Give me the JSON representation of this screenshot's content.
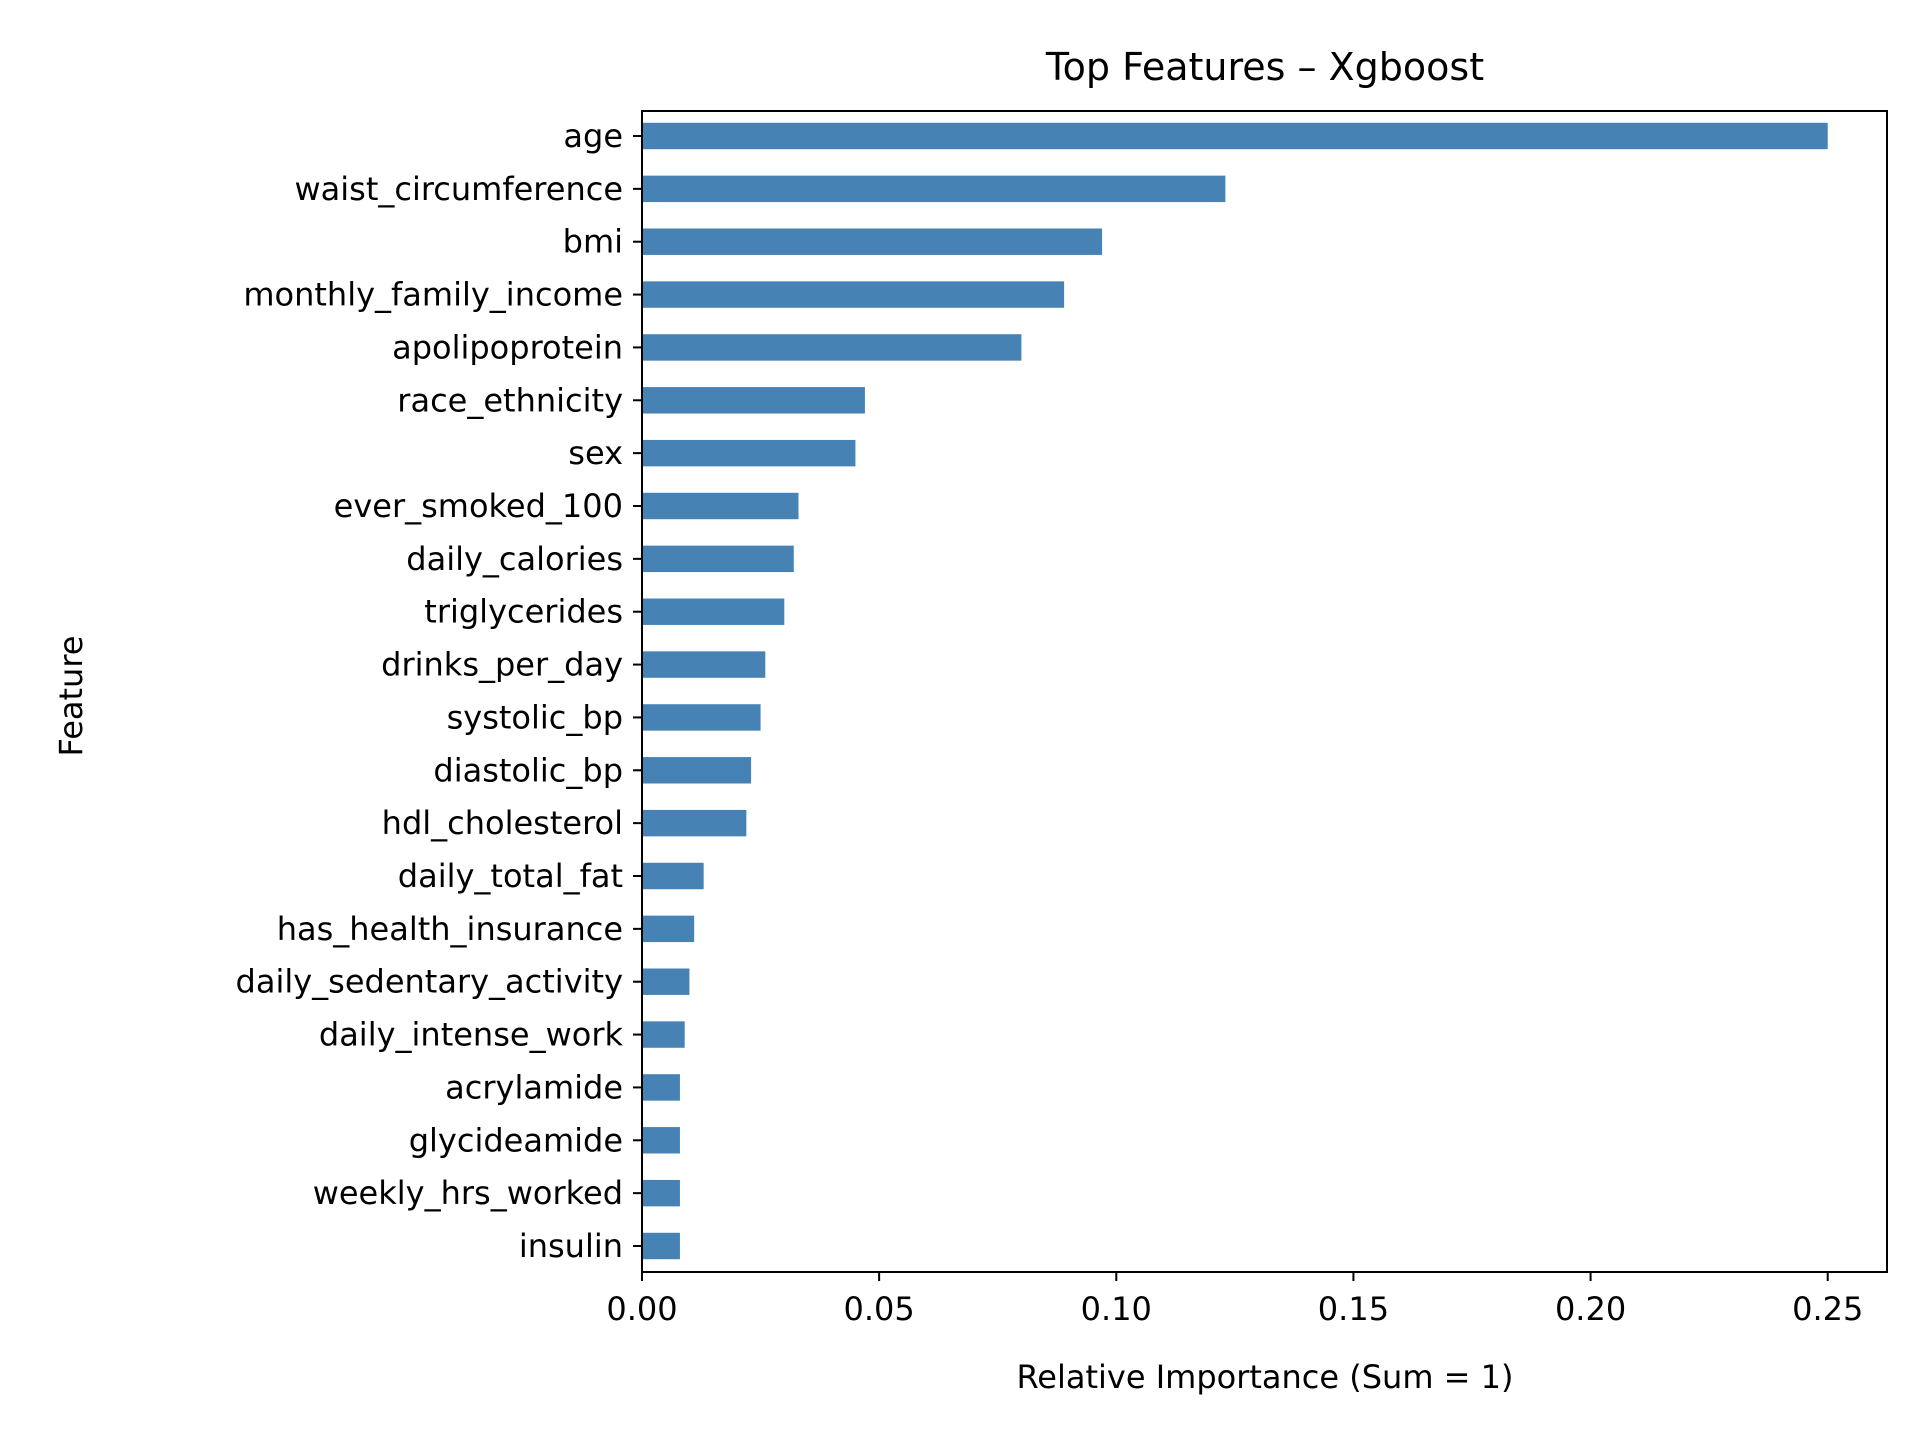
{
  "chart_data": {
    "type": "bar",
    "orientation": "horizontal",
    "title": "Top Features – Xgboost",
    "xlabel": "Relative Importance (Sum = 1)",
    "ylabel": "Feature",
    "categories": [
      "age",
      "waist_circumference",
      "bmi",
      "monthly_family_income",
      "apolipoprotein",
      "race_ethnicity",
      "sex",
      "ever_smoked_100",
      "daily_calories",
      "triglycerides",
      "drinks_per_day",
      "systolic_bp",
      "diastolic_bp",
      "hdl_cholesterol",
      "daily_total_fat",
      "has_health_insurance",
      "daily_sedentary_activity",
      "daily_intense_work",
      "acrylamide",
      "glycideamide",
      "weekly_hrs_worked",
      "insulin"
    ],
    "values": [
      0.25,
      0.123,
      0.097,
      0.089,
      0.08,
      0.047,
      0.045,
      0.033,
      0.032,
      0.03,
      0.026,
      0.025,
      0.023,
      0.022,
      0.013,
      0.011,
      0.01,
      0.009,
      0.008,
      0.008,
      0.008,
      0.008
    ],
    "xticks": [
      "0.00",
      "0.05",
      "0.10",
      "0.15",
      "0.20",
      "0.25"
    ],
    "xlim": [
      0,
      0.2625
    ],
    "grid": false,
    "legend": false,
    "colors": {
      "bar": "#4682b4",
      "axis": "#000000",
      "background": "#ffffff"
    }
  }
}
